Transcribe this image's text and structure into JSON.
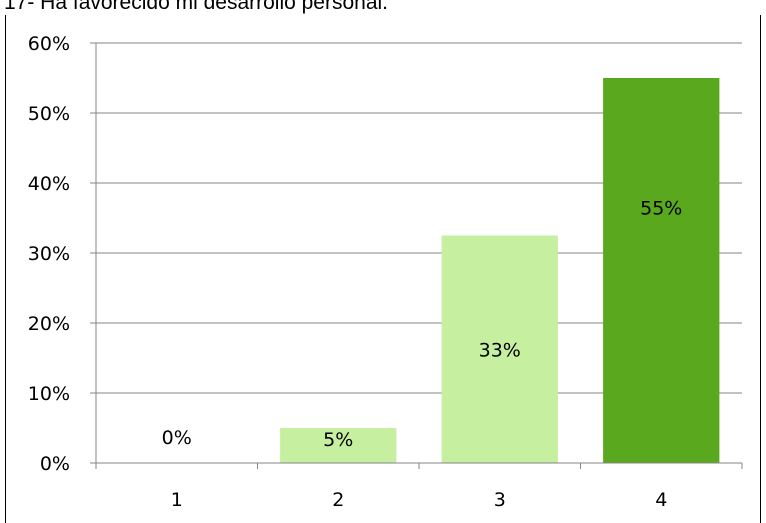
{
  "chart_data": {
    "type": "bar",
    "title": "17- Ha favorecido mi desarrollo personal.",
    "categories": [
      "1",
      "2",
      "3",
      "4"
    ],
    "values": [
      0,
      5,
      32.5,
      55
    ],
    "data_labels": [
      "0%",
      "5%",
      "33%",
      "55%"
    ],
    "bar_colors": [
      "#c6efa0",
      "#c6efa0",
      "#c6efa0",
      "#5aa81e"
    ],
    "ylim": [
      0,
      60
    ],
    "yticks": [
      0,
      10,
      20,
      30,
      40,
      50,
      60
    ],
    "ytick_labels": [
      "0%",
      "10%",
      "20%",
      "30%",
      "40%",
      "50%",
      "60%"
    ],
    "grid": true,
    "xlabel": "",
    "ylabel": ""
  },
  "colors": {
    "gridline": "#868686",
    "axis": "#868686"
  }
}
